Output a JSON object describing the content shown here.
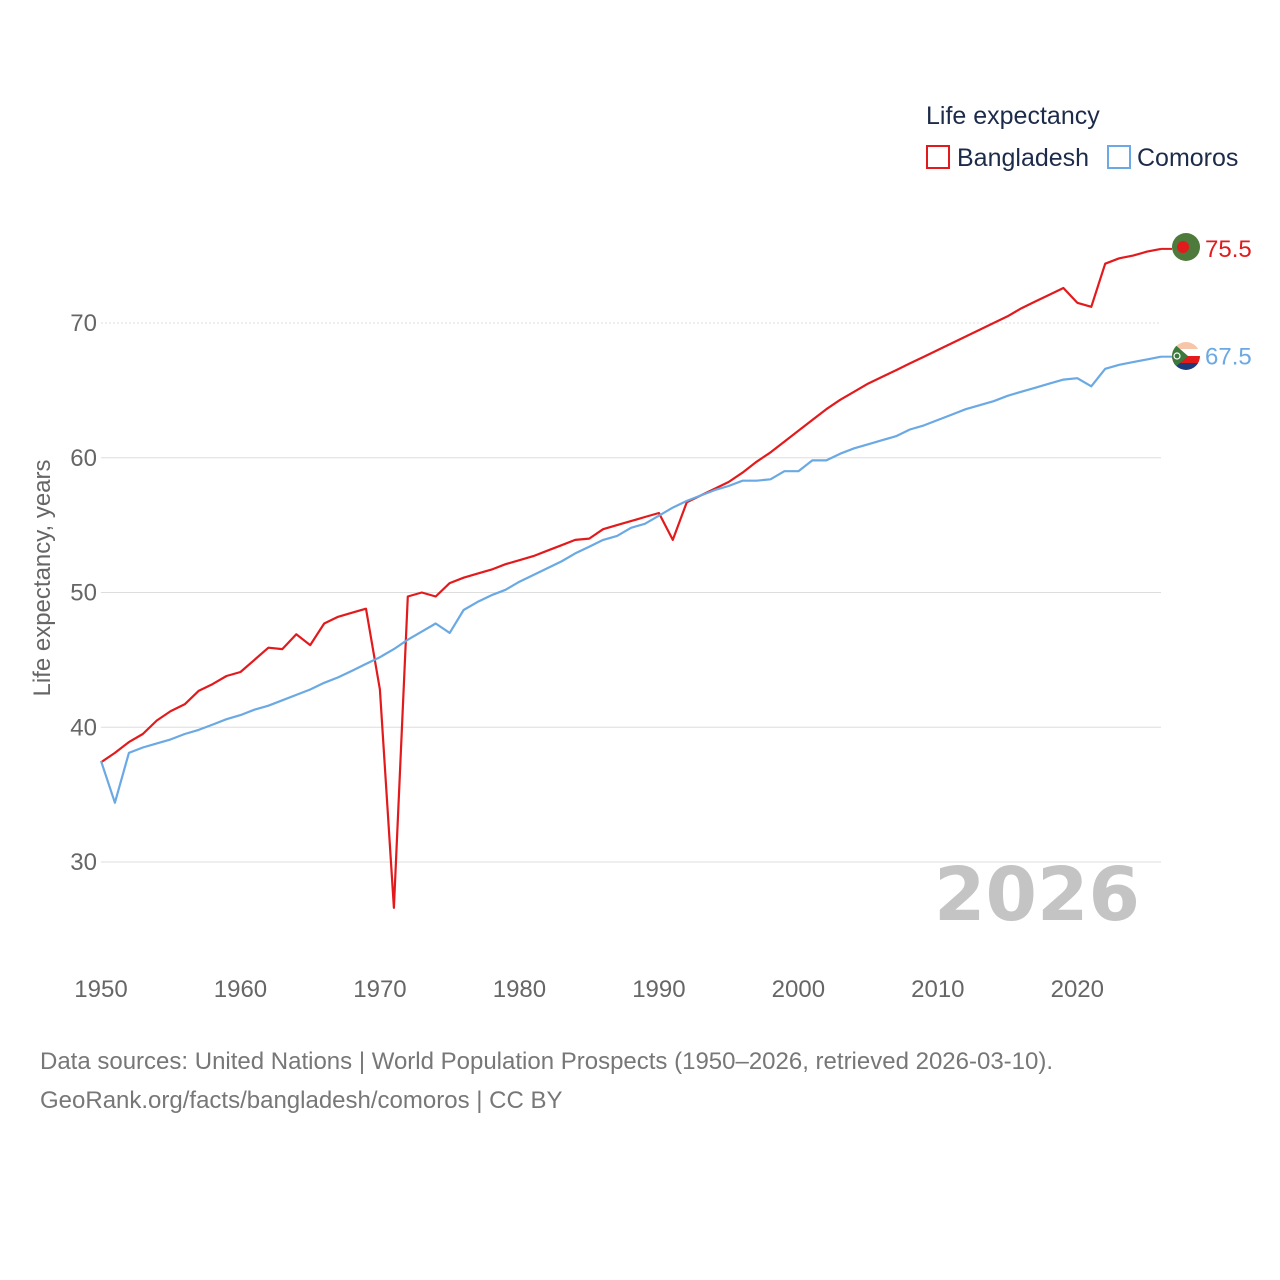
{
  "chart_data": {
    "type": "line",
    "ylabel": "Life expectancy, years",
    "xlim": [
      1950,
      2026
    ],
    "ylim": [
      23,
      80
    ],
    "x_ticks": [
      "1950",
      "1960",
      "1970",
      "1980",
      "1990",
      "2000",
      "2010",
      "2020"
    ],
    "y_ticks": [
      "30",
      "40",
      "50",
      "60",
      "70"
    ],
    "grid": true,
    "legend": {
      "title": "Life expectancy",
      "placement": "top-right"
    },
    "year_label": "2026",
    "series": [
      {
        "name": "Bangladesh",
        "color": "#e31a1c",
        "end_label": "75.5",
        "flag": "bangladesh-flag-icon",
        "x": [
          1950,
          1951,
          1952,
          1953,
          1954,
          1955,
          1956,
          1957,
          1958,
          1959,
          1960,
          1961,
          1962,
          1963,
          1964,
          1965,
          1966,
          1967,
          1968,
          1969,
          1970,
          1971,
          1972,
          1973,
          1974,
          1975,
          1976,
          1977,
          1978,
          1979,
          1980,
          1981,
          1982,
          1983,
          1984,
          1985,
          1986,
          1987,
          1988,
          1989,
          1990,
          1991,
          1992,
          1993,
          1994,
          1995,
          1996,
          1997,
          1998,
          1999,
          2000,
          2001,
          2002,
          2003,
          2004,
          2005,
          2006,
          2007,
          2008,
          2009,
          2010,
          2011,
          2012,
          2013,
          2014,
          2015,
          2016,
          2017,
          2018,
          2019,
          2020,
          2021,
          2022,
          2023,
          2024,
          2025,
          2026
        ],
        "values": [
          37.4,
          38.1,
          38.9,
          39.5,
          40.5,
          41.2,
          41.7,
          42.7,
          43.2,
          43.8,
          44.1,
          45.0,
          45.9,
          45.8,
          46.9,
          46.1,
          47.7,
          48.2,
          48.5,
          48.8,
          42.8,
          26.6,
          49.7,
          50.0,
          49.7,
          50.7,
          51.1,
          51.4,
          51.7,
          52.1,
          52.4,
          52.7,
          53.1,
          53.5,
          53.9,
          54.0,
          54.7,
          55.0,
          55.3,
          55.6,
          55.9,
          53.9,
          56.7,
          57.2,
          57.7,
          58.2,
          58.9,
          59.7,
          60.4,
          61.2,
          62.0,
          62.8,
          63.6,
          64.3,
          64.9,
          65.5,
          66.0,
          66.5,
          67.0,
          67.5,
          68.0,
          68.5,
          69.0,
          69.5,
          70.0,
          70.5,
          71.1,
          71.6,
          72.1,
          72.6,
          71.5,
          71.2,
          74.4,
          74.8,
          75.0,
          75.3,
          75.5
        ]
      },
      {
        "name": "Comoros",
        "color": "#6aa9e4",
        "end_label": "67.5",
        "flag": "comoros-flag-icon",
        "x": [
          1950,
          1951,
          1952,
          1953,
          1954,
          1955,
          1956,
          1957,
          1958,
          1959,
          1960,
          1961,
          1962,
          1963,
          1964,
          1965,
          1966,
          1967,
          1968,
          1969,
          1970,
          1971,
          1972,
          1973,
          1974,
          1975,
          1976,
          1977,
          1978,
          1979,
          1980,
          1981,
          1982,
          1983,
          1984,
          1985,
          1986,
          1987,
          1988,
          1989,
          1990,
          1991,
          1992,
          1993,
          1994,
          1995,
          1996,
          1997,
          1998,
          1999,
          2000,
          2001,
          2002,
          2003,
          2004,
          2005,
          2006,
          2007,
          2008,
          2009,
          2010,
          2011,
          2012,
          2013,
          2014,
          2015,
          2016,
          2017,
          2018,
          2019,
          2020,
          2021,
          2022,
          2023,
          2024,
          2025,
          2026
        ],
        "values": [
          37.5,
          34.4,
          38.1,
          38.5,
          38.8,
          39.1,
          39.5,
          39.8,
          40.2,
          40.6,
          40.9,
          41.3,
          41.6,
          42.0,
          42.4,
          42.8,
          43.3,
          43.7,
          44.2,
          44.7,
          45.2,
          45.8,
          46.5,
          47.1,
          47.7,
          47.0,
          48.7,
          49.3,
          49.8,
          50.2,
          50.8,
          51.3,
          51.8,
          52.3,
          52.9,
          53.4,
          53.9,
          54.2,
          54.8,
          55.1,
          55.7,
          56.3,
          56.8,
          57.2,
          57.6,
          57.9,
          58.3,
          58.3,
          58.4,
          59.0,
          59.0,
          59.8,
          59.8,
          60.3,
          60.7,
          61.0,
          61.3,
          61.6,
          62.1,
          62.4,
          62.8,
          63.2,
          63.6,
          63.9,
          64.2,
          64.6,
          64.9,
          65.2,
          65.5,
          65.8,
          65.9,
          65.3,
          66.6,
          66.9,
          67.1,
          67.3,
          67.5
        ]
      }
    ]
  },
  "source": {
    "line1": "Data sources: United Nations | World Population Prospects (1950–2026, retrieved 2026-03-10).",
    "line2": "GeoRank.org/facts/bangladesh/comoros | CC BY"
  }
}
